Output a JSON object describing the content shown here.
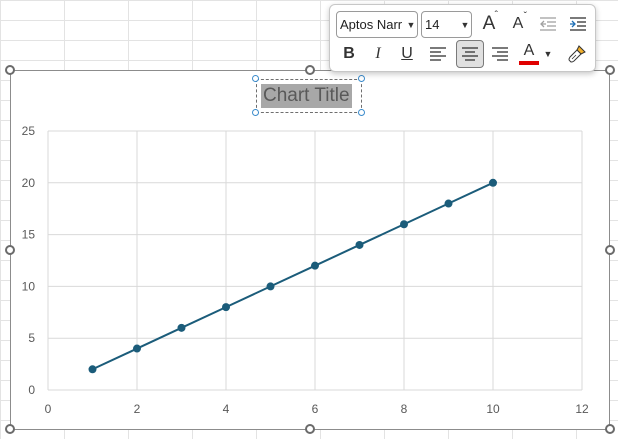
{
  "toolbar": {
    "font_name": "Aptos Narr",
    "font_size": "14",
    "buttons": {
      "increase_font": "A",
      "decrease_font": "A",
      "bold": "B",
      "italic": "I",
      "underline": "U",
      "font_color": "A"
    },
    "colors": {
      "font_color_bar": "#e00000",
      "align_center_pressed": "#e0e0e0"
    }
  },
  "chart": {
    "title": "Chart Title",
    "series_color": "#1b5c7a"
  },
  "chart_data": {
    "type": "scatter",
    "title": "Chart Title",
    "xlabel": "",
    "ylabel": "",
    "x": [
      1,
      2,
      3,
      4,
      5,
      6,
      7,
      8,
      9,
      10
    ],
    "series": [
      {
        "values": [
          2,
          4,
          6,
          8,
          10,
          12,
          14,
          16,
          18,
          20
        ]
      }
    ],
    "xlim": [
      0,
      12
    ],
    "ylim": [
      0,
      25
    ],
    "xticks": [
      0,
      2,
      4,
      6,
      8,
      10,
      12
    ],
    "yticks": [
      0,
      5,
      10,
      15,
      20,
      25
    ],
    "grid": true,
    "line_connected": true,
    "legend": "none"
  }
}
